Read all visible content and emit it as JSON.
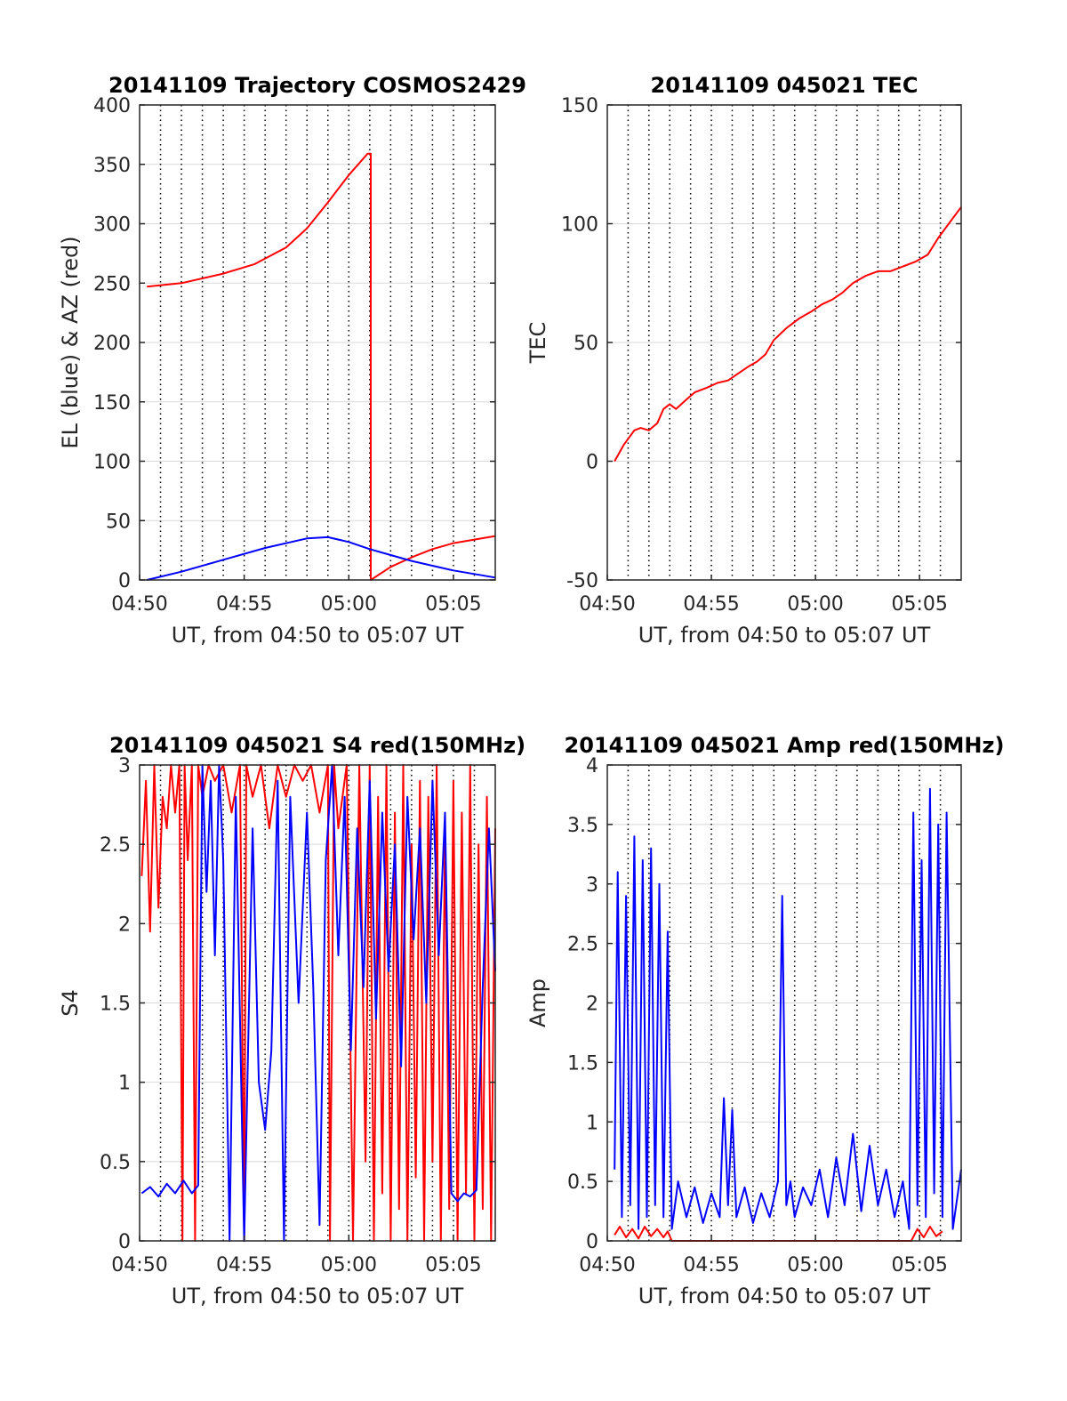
{
  "figure": {
    "background": "#ffffff",
    "grid_color": "#d9d9d9",
    "axis_color": "#262626"
  },
  "chart_data": [
    {
      "type": "line",
      "title": "20141109 Trajectory COSMOS2429",
      "xlabel": "UT, from 04:50 to 05:07 UT",
      "ylabel": "EL (blue) & AZ (red)",
      "xlim": [
        0,
        17
      ],
      "ylim": [
        0,
        400
      ],
      "xticks": [
        0,
        5,
        10,
        15
      ],
      "xtick_labels": [
        "04:50",
        "04:55",
        "05:00",
        "05:05"
      ],
      "yticks": [
        0,
        50,
        100,
        150,
        200,
        250,
        300,
        350,
        400
      ],
      "ytick_labels": [
        "0",
        "50",
        "100",
        "150",
        "200",
        "250",
        "300",
        "350",
        "400"
      ],
      "vlines": [
        1,
        2,
        3,
        4,
        5,
        6,
        7,
        8,
        9,
        10,
        11,
        12,
        13,
        14,
        15,
        16
      ],
      "hgrid": true,
      "series": [
        {
          "color": "#ff0000",
          "x": [
            0.35,
            2,
            4,
            5.5,
            7,
            8,
            9,
            10,
            10.9,
            11.05,
            11.05,
            12,
            13,
            14,
            15,
            16,
            17
          ],
          "y": [
            247,
            250,
            258,
            266,
            280,
            296,
            318,
            341,
            359,
            359,
            0,
            11,
            19,
            26,
            31,
            34,
            37
          ]
        },
        {
          "color": "#0000ff",
          "x": [
            0.35,
            2,
            4,
            6,
            8,
            9,
            10,
            11,
            12,
            13,
            14,
            15,
            16,
            17
          ],
          "y": [
            0,
            7,
            17,
            27,
            35,
            36,
            32,
            26,
            21,
            16,
            12,
            8,
            5,
            2
          ]
        }
      ]
    },
    {
      "type": "line",
      "title": "20141109 045021 TEC",
      "xlabel": "UT, from 04:50 to 05:07 UT",
      "ylabel": "TEC",
      "xlim": [
        0,
        17
      ],
      "ylim": [
        -50,
        150
      ],
      "xticks": [
        0,
        5,
        10,
        15
      ],
      "xtick_labels": [
        "04:50",
        "04:55",
        "05:00",
        "05:05"
      ],
      "yticks": [
        -50,
        0,
        50,
        100,
        150
      ],
      "ytick_labels": [
        "-50",
        "0",
        "50",
        "100",
        "150"
      ],
      "vlines": [
        1,
        2,
        3,
        4,
        5,
        6,
        7,
        8,
        9,
        10,
        11,
        12,
        13,
        14,
        15,
        16
      ],
      "hgrid": true,
      "series": [
        {
          "color": "#ff0000",
          "x": [
            0.35,
            0.8,
            1.3,
            1.6,
            2.0,
            2.4,
            2.7,
            3.0,
            3.3,
            3.8,
            4.2,
            4.8,
            5.3,
            5.8,
            6.3,
            6.8,
            7.2,
            7.6,
            8.0,
            8.6,
            9.2,
            9.8,
            10.3,
            10.8,
            11.3,
            11.8,
            12.4,
            13.0,
            13.6,
            14.2,
            14.8,
            15.4,
            15.9,
            16.4,
            17.0
          ],
          "y": [
            0,
            7,
            13,
            14,
            13,
            16,
            22,
            24,
            22,
            26,
            29,
            31,
            33,
            34,
            37,
            40,
            42,
            45,
            51,
            56,
            60,
            63,
            66,
            68,
            71,
            75,
            78,
            80,
            80,
            82,
            84,
            87,
            94,
            100,
            107
          ]
        }
      ]
    },
    {
      "type": "line",
      "title": "20141109 045021 S4 red(150MHz)",
      "xlabel": "UT, from 04:50 to 05:07 UT",
      "ylabel": "S4",
      "xlim": [
        0,
        17
      ],
      "ylim": [
        0,
        3
      ],
      "xticks": [
        0,
        5,
        10,
        15
      ],
      "xtick_labels": [
        "04:50",
        "04:55",
        "05:00",
        "05:05"
      ],
      "yticks": [
        0,
        0.5,
        1,
        1.5,
        2,
        2.5,
        3
      ],
      "ytick_labels": [
        "0",
        "0.5",
        "1",
        "1.5",
        "2",
        "2.5",
        "3"
      ],
      "vlines": [
        1,
        2,
        3,
        4,
        5,
        6,
        7,
        8,
        9,
        10,
        11,
        12,
        13,
        14,
        15,
        16
      ],
      "hgrid": true,
      "series": [
        {
          "color": "#ff0000",
          "x": [
            0.1,
            0.3,
            0.5,
            0.7,
            0.9,
            1.1,
            1.3,
            1.5,
            1.7,
            1.9,
            2.05,
            2.15,
            2.3,
            2.5,
            2.65,
            2.8,
            3.0,
            3.3,
            3.6,
            4.0,
            4.4,
            4.8,
            5.0,
            5.1,
            5.4,
            5.8,
            6.2,
            6.6,
            7.0,
            7.4,
            7.8,
            8.2,
            8.6,
            9.0,
            9.1,
            9.3,
            9.5,
            9.9,
            10.2,
            10.5,
            10.8,
            11.0,
            11.2,
            11.4,
            11.6,
            11.8,
            12.0,
            12.2,
            12.4,
            12.6,
            12.8,
            13.0,
            13.2,
            13.4,
            13.6,
            13.8,
            14.0,
            14.2,
            14.4,
            14.6,
            14.8,
            15.0,
            15.2,
            15.4,
            15.6,
            15.8,
            16.0,
            16.2,
            16.4,
            16.6,
            16.8,
            17.0
          ],
          "y": [
            2.3,
            2.9,
            1.95,
            3.0,
            2.1,
            2.8,
            2.6,
            3.0,
            2.7,
            3.0,
            0,
            3.0,
            2.4,
            3.0,
            0,
            3.0,
            2.8,
            3.0,
            2.9,
            3.0,
            2.7,
            3.0,
            0,
            3.0,
            2.8,
            3.0,
            2.6,
            3.0,
            2.8,
            3.0,
            2.9,
            3.0,
            2.7,
            3.0,
            0,
            3.0,
            2.6,
            3.0,
            0,
            3.0,
            0.5,
            3.0,
            0,
            2.8,
            0.3,
            3.0,
            0,
            2.7,
            0.2,
            3.0,
            0,
            2.5,
            0.4,
            2.9,
            0,
            2.8,
            0.5,
            3.0,
            0,
            2.6,
            0.2,
            2.9,
            0,
            2.7,
            0.3,
            3.0,
            0,
            2.5,
            0.2,
            2.8,
            0,
            2.6
          ]
        },
        {
          "color": "#0000ff",
          "x": [
            0.1,
            0.5,
            0.9,
            1.3,
            1.7,
            2.1,
            2.5,
            2.8,
            3.0,
            3.2,
            3.4,
            3.6,
            3.8,
            4.0,
            4.3,
            4.6,
            5.0,
            5.4,
            5.7,
            6.0,
            6.3,
            6.6,
            6.9,
            7.2,
            7.6,
            8.0,
            8.3,
            8.6,
            8.9,
            9.2,
            9.5,
            9.8,
            10.1,
            10.4,
            10.7,
            11.0,
            11.3,
            11.6,
            11.9,
            12.2,
            12.5,
            12.8,
            13.1,
            13.4,
            13.7,
            14.0,
            14.3,
            14.6,
            14.9,
            15.2,
            15.5,
            15.8,
            16.1,
            16.4,
            16.7,
            17.0
          ],
          "y": [
            0.3,
            0.34,
            0.28,
            0.36,
            0.3,
            0.38,
            0.3,
            0.35,
            3.0,
            2.2,
            2.9,
            1.8,
            3.0,
            2.4,
            0,
            2.8,
            0,
            2.6,
            1.0,
            0.7,
            1.2,
            2.9,
            0,
            2.8,
            1.5,
            2.7,
            1.6,
            0.1,
            2.4,
            3.0,
            1.8,
            2.8,
            1.2,
            2.6,
            1.6,
            2.9,
            1.4,
            2.7,
            1.7,
            2.5,
            1.1,
            2.8,
            1.9,
            2.6,
            1.5,
            2.9,
            1.8,
            2.7,
            0.3,
            0.25,
            0.3,
            0.28,
            0.32,
            1.6,
            2.6,
            1.7
          ]
        }
      ]
    },
    {
      "type": "line",
      "title": "20141109 045021 Amp red(150MHz)",
      "xlabel": "UT, from 04:50 to 05:07 UT",
      "ylabel": "Amp",
      "xlim": [
        0,
        17
      ],
      "ylim": [
        0,
        4
      ],
      "xticks": [
        0,
        5,
        10,
        15
      ],
      "xtick_labels": [
        "04:50",
        "04:55",
        "05:00",
        "05:05"
      ],
      "yticks": [
        0,
        0.5,
        1,
        1.5,
        2,
        2.5,
        3,
        3.5,
        4
      ],
      "ytick_labels": [
        "0",
        "0.5",
        "1",
        "1.5",
        "2",
        "2.5",
        "3",
        "3.5",
        "4"
      ],
      "vlines": [
        1,
        2,
        3,
        4,
        5,
        6,
        7,
        8,
        9,
        10,
        11,
        12,
        13,
        14,
        15,
        16
      ],
      "hgrid": true,
      "series": [
        {
          "color": "#ff0000",
          "x": [
            0.35,
            0.6,
            0.9,
            1.2,
            1.5,
            1.8,
            2.1,
            2.4,
            2.7,
            2.9,
            3.1,
            14.6,
            14.9,
            15.2,
            15.5,
            15.8,
            16.1
          ],
          "y": [
            0.05,
            0.12,
            0.03,
            0.1,
            0.02,
            0.12,
            0.04,
            0.1,
            0.03,
            0.08,
            0,
            0,
            0.1,
            0.03,
            0.12,
            0.04,
            0.08
          ]
        },
        {
          "color": "#0000ff",
          "x": [
            0.35,
            0.5,
            0.7,
            0.9,
            1.1,
            1.3,
            1.5,
            1.7,
            1.9,
            2.1,
            2.3,
            2.5,
            2.7,
            2.9,
            3.1,
            3.4,
            3.8,
            4.2,
            4.6,
            5.0,
            5.4,
            5.6,
            5.8,
            6.0,
            6.2,
            6.6,
            7.0,
            7.4,
            7.8,
            8.2,
            8.4,
            8.6,
            8.8,
            9.0,
            9.4,
            9.8,
            10.2,
            10.6,
            11.0,
            11.4,
            11.8,
            12.2,
            12.6,
            13.0,
            13.4,
            13.8,
            14.2,
            14.5,
            14.7,
            14.9,
            15.1,
            15.3,
            15.5,
            15.7,
            15.9,
            16.1,
            16.3,
            16.6,
            17.0
          ],
          "y": [
            0.6,
            3.1,
            0.2,
            2.9,
            0.3,
            3.4,
            0.1,
            3.2,
            0.2,
            3.3,
            0.3,
            3.0,
            0.2,
            2.6,
            0.1,
            0.5,
            0.2,
            0.45,
            0.15,
            0.4,
            0.2,
            1.2,
            0.3,
            1.1,
            0.2,
            0.45,
            0.15,
            0.4,
            0.2,
            0.5,
            2.9,
            0.3,
            0.5,
            0.2,
            0.45,
            0.3,
            0.6,
            0.2,
            0.7,
            0.3,
            0.9,
            0.25,
            0.8,
            0.3,
            0.6,
            0.2,
            0.5,
            0.1,
            3.6,
            0.3,
            3.2,
            0.2,
            3.8,
            0.4,
            3.5,
            0.2,
            3.6,
            0.1,
            0.6
          ]
        }
      ]
    }
  ]
}
